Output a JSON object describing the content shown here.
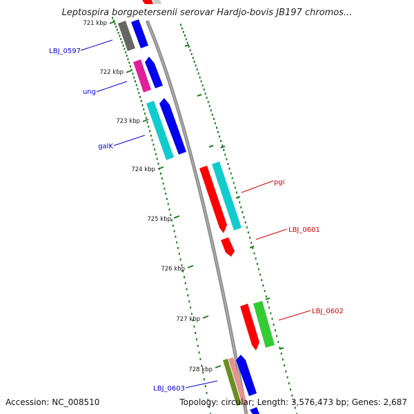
{
  "title": "Leptospira borgpetersenii serovar Hardjo-bovis JB197 chromos...",
  "footer": {
    "accession": "Accession: NC_008510",
    "summary": "Topology: circular; Length: 3,576,473 bp; Genes: 2,687"
  },
  "ticks": [
    "721 kbp",
    "722 kbp",
    "723 kbp",
    "724 kbp",
    "725 kbp",
    "726 kbp",
    "727 kbp",
    "728 kbp"
  ],
  "genes_left": [
    {
      "label": "LBJ_0597",
      "color": "#0000cc"
    },
    {
      "label": "ung",
      "color": "#0000cc"
    },
    {
      "label": "galK",
      "color": "#0000cc"
    },
    {
      "label": "LBJ_0603",
      "color": "#0000cc"
    }
  ],
  "genes_right": [
    {
      "label": "pgi",
      "color": "#cc0000"
    },
    {
      "label": "LBJ_0601",
      "color": "#cc0000"
    },
    {
      "label": "LBJ_0602",
      "color": "#cc0000"
    }
  ],
  "colors": {
    "backbone": "#8a8a8a",
    "ticks": "#1f7a1f",
    "blue": "#0000ee",
    "red": "#ff0000",
    "cyan": "#11cccc",
    "magenta": "#e0209a",
    "gray": "#666666",
    "green": "#33cc33",
    "olive": "#6b8e23",
    "salmon": "#e89090"
  }
}
